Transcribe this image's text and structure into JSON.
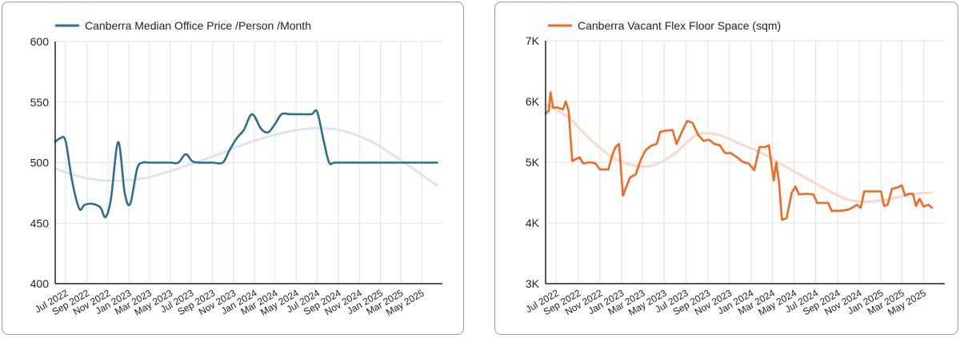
{
  "chart_data": [
    {
      "type": "line",
      "legend": "Canberra Median Office Price /Person /Month",
      "color": "#2e6e8e",
      "trend_color": "#d8e6ee",
      "ylim": [
        400,
        600
      ],
      "yticks": [
        "400",
        "450",
        "500",
        "550",
        "600"
      ],
      "ytick_values": [
        400,
        450,
        500,
        550,
        600
      ],
      "x_start": "2022-06-01",
      "x_end": "2025-06-30",
      "xticks": [
        {
          "label": "Jul 2022",
          "date": "2022-07-01"
        },
        {
          "label": "Sep 2022",
          "date": "2022-09-01"
        },
        {
          "label": "Nov 2022",
          "date": "2022-11-01"
        },
        {
          "label": "Jan 2023",
          "date": "2023-01-01"
        },
        {
          "label": "Mar 2023",
          "date": "2023-03-01"
        },
        {
          "label": "May 2023",
          "date": "2023-05-01"
        },
        {
          "label": "Jul 2023",
          "date": "2023-07-01"
        },
        {
          "label": "Sep 2023",
          "date": "2023-09-01"
        },
        {
          "label": "Nov 2023",
          "date": "2023-11-01"
        },
        {
          "label": "Jan 2024",
          "date": "2024-01-01"
        },
        {
          "label": "Mar 2024",
          "date": "2024-03-01"
        },
        {
          "label": "May 2024",
          "date": "2024-05-01"
        },
        {
          "label": "Jul 2024",
          "date": "2024-07-01"
        },
        {
          "label": "Sep 2024",
          "date": "2024-09-01"
        },
        {
          "label": "Nov 2024",
          "date": "2024-11-01"
        },
        {
          "label": "Jan 2025",
          "date": "2025-01-01"
        },
        {
          "label": "Mar 2025",
          "date": "2025-03-01"
        },
        {
          "label": "May 2025",
          "date": "2025-05-01"
        }
      ],
      "series": [
        {
          "points": [
            [
              "2022-06-01",
              517
            ],
            [
              "2022-06-15",
              520
            ],
            [
              "2022-07-01",
              518
            ],
            [
              "2022-07-20",
              485
            ],
            [
              "2022-08-10",
              462
            ],
            [
              "2022-08-25",
              465
            ],
            [
              "2022-09-15",
              466
            ],
            [
              "2022-10-10",
              463
            ],
            [
              "2022-10-25",
              455
            ],
            [
              "2022-11-10",
              470
            ],
            [
              "2022-12-01",
              517
            ],
            [
              "2022-12-20",
              475
            ],
            [
              "2023-01-05",
              466
            ],
            [
              "2023-01-25",
              495
            ],
            [
              "2023-02-10",
              500
            ],
            [
              "2023-03-01",
              500
            ],
            [
              "2023-04-01",
              500
            ],
            [
              "2023-05-01",
              500
            ],
            [
              "2023-05-25",
              500
            ],
            [
              "2023-06-15",
              507
            ],
            [
              "2023-07-05",
              501
            ],
            [
              "2023-08-01",
              500
            ],
            [
              "2023-09-01",
              500
            ],
            [
              "2023-10-01",
              500
            ],
            [
              "2023-10-20",
              510
            ],
            [
              "2023-11-10",
              520
            ],
            [
              "2023-12-01",
              527
            ],
            [
              "2023-12-25",
              540
            ],
            [
              "2024-01-20",
              528
            ],
            [
              "2024-02-10",
              525
            ],
            [
              "2024-03-01",
              532
            ],
            [
              "2024-03-20",
              540
            ],
            [
              "2024-04-15",
              540
            ],
            [
              "2024-05-15",
              540
            ],
            [
              "2024-06-15",
              540
            ],
            [
              "2024-07-01",
              542
            ],
            [
              "2024-07-20",
              518
            ],
            [
              "2024-08-05",
              500
            ],
            [
              "2024-08-20",
              500
            ],
            [
              "2024-09-15",
              500
            ],
            [
              "2024-10-15",
              500
            ],
            [
              "2024-11-15",
              500
            ],
            [
              "2024-12-15",
              500
            ],
            [
              "2025-01-15",
              500
            ],
            [
              "2025-02-15",
              500
            ],
            [
              "2025-03-15",
              500
            ],
            [
              "2025-04-15",
              500
            ],
            [
              "2025-05-15",
              500
            ],
            [
              "2025-06-15",
              500
            ]
          ]
        },
        {
          "role": "trend",
          "points": [
            [
              "2022-06-01",
              495
            ],
            [
              "2022-09-01",
              487
            ],
            [
              "2022-12-01",
              485
            ],
            [
              "2023-03-01",
              488
            ],
            [
              "2023-06-01",
              496
            ],
            [
              "2023-09-01",
              505
            ],
            [
              "2023-12-01",
              515
            ],
            [
              "2024-03-01",
              523
            ],
            [
              "2024-06-01",
              528
            ],
            [
              "2024-09-01",
              527
            ],
            [
              "2024-12-01",
              518
            ],
            [
              "2025-03-01",
              502
            ],
            [
              "2025-06-15",
              481
            ]
          ]
        }
      ]
    },
    {
      "type": "line",
      "legend": "Canberra Vacant Flex Floor Space (sqm)",
      "color": "#f06a22",
      "trend_color": "#fbd9c6",
      "ylim": [
        3000,
        7000
      ],
      "yticks": [
        "3K",
        "4K",
        "5K",
        "6K",
        "7K"
      ],
      "ytick_values": [
        3000,
        4000,
        5000,
        6000,
        7000
      ],
      "x_start": "2022-06-01",
      "x_end": "2025-06-30",
      "xticks": [
        {
          "label": "Jul 2022",
          "date": "2022-07-01"
        },
        {
          "label": "Sep 2022",
          "date": "2022-09-01"
        },
        {
          "label": "Nov 2022",
          "date": "2022-11-01"
        },
        {
          "label": "Jan 2023",
          "date": "2023-01-01"
        },
        {
          "label": "Mar 2023",
          "date": "2023-03-01"
        },
        {
          "label": "May 2023",
          "date": "2023-05-01"
        },
        {
          "label": "Jul 2023",
          "date": "2023-07-01"
        },
        {
          "label": "Sep 2023",
          "date": "2023-09-01"
        },
        {
          "label": "Nov 2023",
          "date": "2023-11-01"
        },
        {
          "label": "Jan 2024",
          "date": "2024-01-01"
        },
        {
          "label": "Mar 2024",
          "date": "2024-03-01"
        },
        {
          "label": "May 2024",
          "date": "2024-05-01"
        },
        {
          "label": "Jul 2024",
          "date": "2024-07-01"
        },
        {
          "label": "Sep 2024",
          "date": "2024-09-01"
        },
        {
          "label": "Nov 2024",
          "date": "2024-11-01"
        },
        {
          "label": "Jan 2025",
          "date": "2025-01-01"
        },
        {
          "label": "Mar 2025",
          "date": "2025-03-01"
        },
        {
          "label": "May 2025",
          "date": "2025-05-01"
        }
      ],
      "series": [
        {
          "points": [
            [
              "2022-06-01",
              5800
            ],
            [
              "2022-06-10",
              5850
            ],
            [
              "2022-06-15",
              6150
            ],
            [
              "2022-06-22",
              5900
            ],
            [
              "2022-07-05",
              5900
            ],
            [
              "2022-07-20",
              5870
            ],
            [
              "2022-07-28",
              6000
            ],
            [
              "2022-08-05",
              5850
            ],
            [
              "2022-08-15",
              5020
            ],
            [
              "2022-08-25",
              5050
            ],
            [
              "2022-09-05",
              5080
            ],
            [
              "2022-09-15",
              4980
            ],
            [
              "2022-10-05",
              5000
            ],
            [
              "2022-10-20",
              4980
            ],
            [
              "2022-11-01",
              4880
            ],
            [
              "2022-11-25",
              4880
            ],
            [
              "2022-12-05",
              5100
            ],
            [
              "2022-12-15",
              5250
            ],
            [
              "2022-12-25",
              5300
            ],
            [
              "2023-01-05",
              4450
            ],
            [
              "2023-01-15",
              4600
            ],
            [
              "2023-01-25",
              4750
            ],
            [
              "2023-02-10",
              4800
            ],
            [
              "2023-02-25",
              5050
            ],
            [
              "2023-03-10",
              5200
            ],
            [
              "2023-03-25",
              5270
            ],
            [
              "2023-04-10",
              5300
            ],
            [
              "2023-04-20",
              5500
            ],
            [
              "2023-05-05",
              5520
            ],
            [
              "2023-05-25",
              5530
            ],
            [
              "2023-06-05",
              5300
            ],
            [
              "2023-06-20",
              5500
            ],
            [
              "2023-07-05",
              5680
            ],
            [
              "2023-07-20",
              5650
            ],
            [
              "2023-08-05",
              5450
            ],
            [
              "2023-08-20",
              5350
            ],
            [
              "2023-09-05",
              5370
            ],
            [
              "2023-09-20",
              5300
            ],
            [
              "2023-10-05",
              5280
            ],
            [
              "2023-10-20",
              5150
            ],
            [
              "2023-11-05",
              5150
            ],
            [
              "2023-11-25",
              5070
            ],
            [
              "2023-12-10",
              5000
            ],
            [
              "2023-12-25",
              4980
            ],
            [
              "2024-01-10",
              4870
            ],
            [
              "2024-01-25",
              5250
            ],
            [
              "2024-02-10",
              5250
            ],
            [
              "2024-02-20",
              5280
            ],
            [
              "2024-03-05",
              4700
            ],
            [
              "2024-03-12",
              5000
            ],
            [
              "2024-03-20",
              4650
            ],
            [
              "2024-03-28",
              4050
            ],
            [
              "2024-04-10",
              4080
            ],
            [
              "2024-04-25",
              4500
            ],
            [
              "2024-05-05",
              4600
            ],
            [
              "2024-05-15",
              4470
            ],
            [
              "2024-06-05",
              4480
            ],
            [
              "2024-06-25",
              4470
            ],
            [
              "2024-07-05",
              4330
            ],
            [
              "2024-07-25",
              4330
            ],
            [
              "2024-08-05",
              4330
            ],
            [
              "2024-08-15",
              4200
            ],
            [
              "2024-09-10",
              4200
            ],
            [
              "2024-10-01",
              4220
            ],
            [
              "2024-10-15",
              4260
            ],
            [
              "2024-10-25",
              4300
            ],
            [
              "2024-11-05",
              4250
            ],
            [
              "2024-11-15",
              4520
            ],
            [
              "2024-12-10",
              4520
            ],
            [
              "2025-01-01",
              4520
            ],
            [
              "2025-01-10",
              4280
            ],
            [
              "2025-01-20",
              4300
            ],
            [
              "2025-02-01",
              4560
            ],
            [
              "2025-02-15",
              4580
            ],
            [
              "2025-03-01",
              4620
            ],
            [
              "2025-03-10",
              4450
            ],
            [
              "2025-03-20",
              4480
            ],
            [
              "2025-04-01",
              4480
            ],
            [
              "2025-04-10",
              4280
            ],
            [
              "2025-04-20",
              4400
            ],
            [
              "2025-05-01",
              4270
            ],
            [
              "2025-05-15",
              4300
            ],
            [
              "2025-05-25",
              4250
            ]
          ]
        },
        {
          "role": "trend",
          "points": [
            [
              "2022-06-01",
              5950
            ],
            [
              "2022-08-01",
              5750
            ],
            [
              "2022-10-01",
              5400
            ],
            [
              "2022-12-01",
              5100
            ],
            [
              "2023-02-01",
              4950
            ],
            [
              "2023-04-01",
              4950
            ],
            [
              "2023-06-01",
              5150
            ],
            [
              "2023-08-01",
              5450
            ],
            [
              "2023-10-01",
              5450
            ],
            [
              "2023-12-01",
              5300
            ],
            [
              "2024-02-01",
              5150
            ],
            [
              "2024-04-01",
              4950
            ],
            [
              "2024-06-01",
              4750
            ],
            [
              "2024-08-01",
              4550
            ],
            [
              "2024-10-01",
              4380
            ],
            [
              "2024-12-01",
              4350
            ],
            [
              "2025-02-01",
              4400
            ],
            [
              "2025-04-01",
              4480
            ],
            [
              "2025-05-25",
              4500
            ]
          ]
        }
      ]
    }
  ]
}
